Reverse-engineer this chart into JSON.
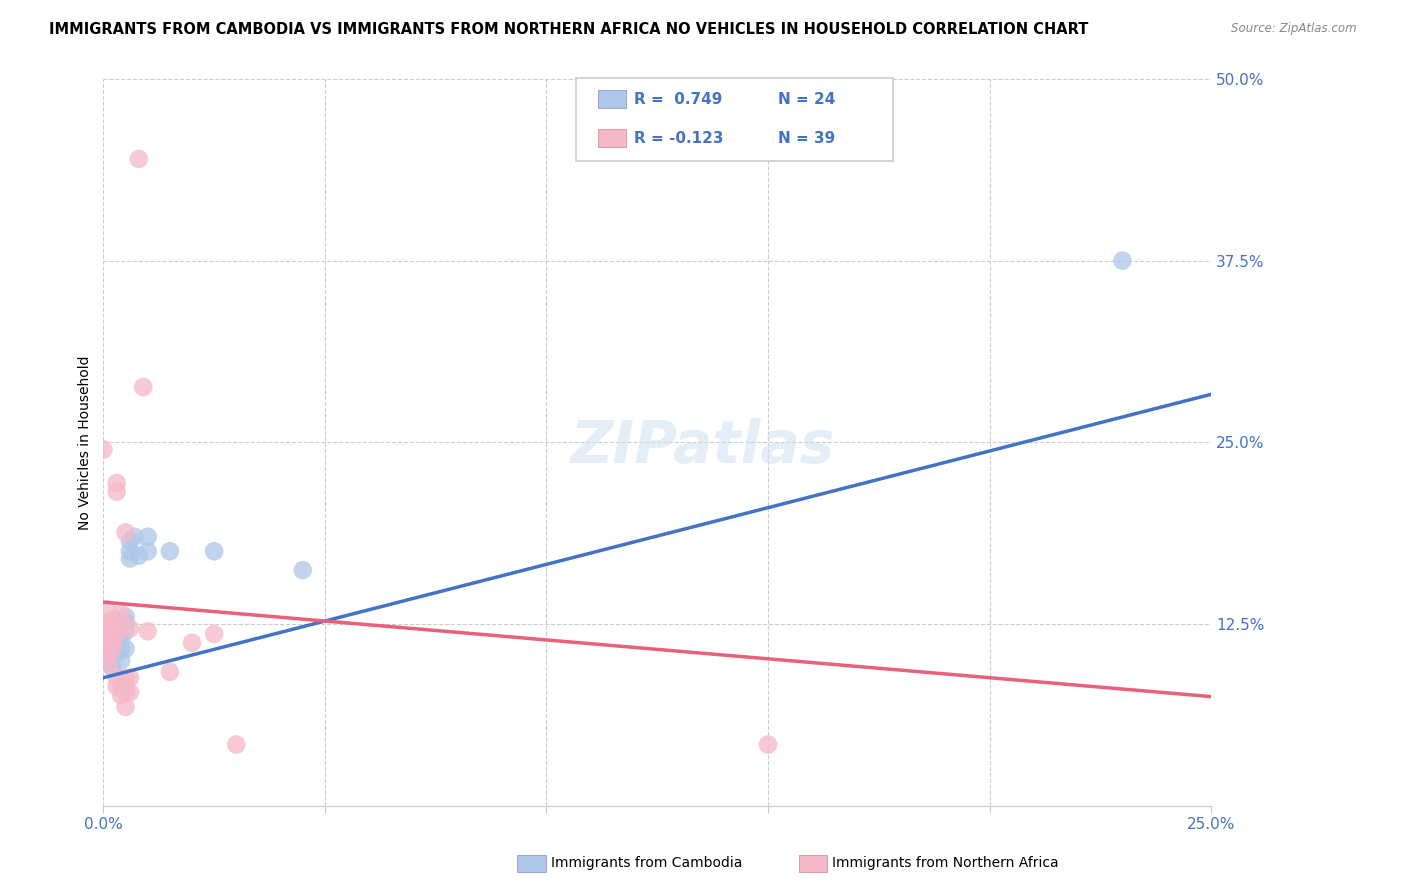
{
  "title": "IMMIGRANTS FROM CAMBODIA VS IMMIGRANTS FROM NORTHERN AFRICA NO VEHICLES IN HOUSEHOLD CORRELATION CHART",
  "source": "Source: ZipAtlas.com",
  "ylabel": "No Vehicles in Household",
  "xlim": [
    0.0,
    0.25
  ],
  "ylim": [
    0.0,
    0.5
  ],
  "y_ticks": [
    0.0,
    0.125,
    0.25,
    0.375,
    0.5
  ],
  "y_tick_labels": [
    "",
    "12.5%",
    "25.0%",
    "37.5%",
    "50.0%"
  ],
  "cambodia_color": "#aec6e8",
  "northern_africa_color": "#f5b8c8",
  "trendline_cambodia_color": "#4472c4",
  "trendline_northern_africa_color": "#e8607a",
  "background_color": "#ffffff",
  "grid_color": "#cccccc",
  "legend_R_cambodia": "R =  0.749",
  "legend_N_cambodia": "N = 24",
  "legend_R_africa": "R = -0.123",
  "legend_N_africa": "N = 39",
  "title_color": "#000000",
  "source_color": "#888888",
  "tick_color": "#4472c4",
  "ylabel_color": "#000000",
  "trendline_intercept_cambodia": 0.088,
  "trendline_slope_cambodia": 0.78,
  "trendline_intercept_africa": 0.14,
  "trendline_slope_africa": -0.26,
  "cambodia_points": [
    [
      0.001,
      0.1
    ],
    [
      0.002,
      0.095
    ],
    [
      0.002,
      0.105
    ],
    [
      0.003,
      0.11
    ],
    [
      0.003,
      0.105
    ],
    [
      0.003,
      0.115
    ],
    [
      0.004,
      0.1
    ],
    [
      0.004,
      0.108
    ],
    [
      0.004,
      0.115
    ],
    [
      0.005,
      0.13
    ],
    [
      0.005,
      0.12
    ],
    [
      0.005,
      0.126
    ],
    [
      0.005,
      0.108
    ],
    [
      0.006,
      0.175
    ],
    [
      0.006,
      0.182
    ],
    [
      0.006,
      0.17
    ],
    [
      0.007,
      0.185
    ],
    [
      0.008,
      0.172
    ],
    [
      0.01,
      0.175
    ],
    [
      0.01,
      0.185
    ],
    [
      0.015,
      0.175
    ],
    [
      0.025,
      0.175
    ],
    [
      0.045,
      0.162
    ],
    [
      0.23,
      0.375
    ]
  ],
  "northern_africa_points": [
    [
      0.0,
      0.245
    ],
    [
      0.001,
      0.135
    ],
    [
      0.001,
      0.125
    ],
    [
      0.001,
      0.118
    ],
    [
      0.001,
      0.112
    ],
    [
      0.001,
      0.108
    ],
    [
      0.001,
      0.102
    ],
    [
      0.001,
      0.098
    ],
    [
      0.002,
      0.128
    ],
    [
      0.002,
      0.122
    ],
    [
      0.002,
      0.118
    ],
    [
      0.002,
      0.112
    ],
    [
      0.002,
      0.108
    ],
    [
      0.003,
      0.222
    ],
    [
      0.003,
      0.216
    ],
    [
      0.003,
      0.122
    ],
    [
      0.003,
      0.118
    ],
    [
      0.003,
      0.088
    ],
    [
      0.003,
      0.082
    ],
    [
      0.004,
      0.132
    ],
    [
      0.004,
      0.128
    ],
    [
      0.004,
      0.082
    ],
    [
      0.004,
      0.076
    ],
    [
      0.005,
      0.188
    ],
    [
      0.005,
      0.088
    ],
    [
      0.005,
      0.082
    ],
    [
      0.005,
      0.078
    ],
    [
      0.005,
      0.068
    ],
    [
      0.006,
      0.122
    ],
    [
      0.006,
      0.088
    ],
    [
      0.006,
      0.078
    ],
    [
      0.008,
      0.445
    ],
    [
      0.009,
      0.288
    ],
    [
      0.01,
      0.12
    ],
    [
      0.015,
      0.092
    ],
    [
      0.02,
      0.112
    ],
    [
      0.025,
      0.118
    ],
    [
      0.03,
      0.042
    ],
    [
      0.15,
      0.042
    ]
  ]
}
